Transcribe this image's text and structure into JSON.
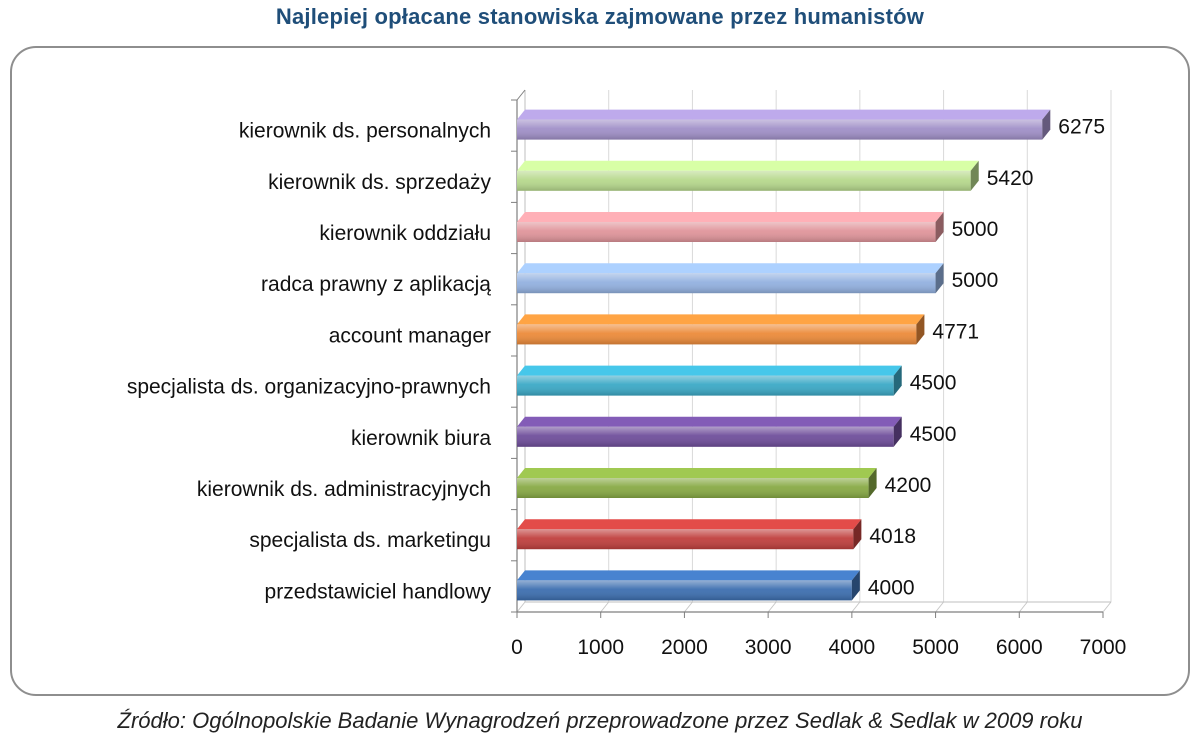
{
  "title": "Najlepiej opłacane stanowiska zajmowane przez humanistów",
  "source": "Źródło: Ogólnopolskie Badanie Wynagrodzeń przeprowadzone przez Sedlak & Sedlak w 2009 roku",
  "chart_data": {
    "type": "bar",
    "orientation": "horizontal",
    "title": "Najlepiej opłacane stanowiska zajmowane przez humanistów",
    "xlabel": "",
    "ylabel": "",
    "xlim": [
      0,
      7000
    ],
    "xticks": [
      0,
      1000,
      2000,
      3000,
      4000,
      5000,
      6000,
      7000
    ],
    "grid": true,
    "categories": [
      "kierownik ds. personalnych",
      "kierownik ds. sprzedaży",
      "kierownik oddziału",
      "radca prawny z aplikacją",
      "account manager",
      "specjalista ds. organizacyjno-prawnych",
      "kierownik biura",
      "kierownik ds. administracyjnych",
      "specjalista ds. marketingu",
      "przedstawiciel handlowy"
    ],
    "values": [
      6275,
      5420,
      5000,
      5000,
      4771,
      4500,
      4500,
      4200,
      4018,
      4000
    ],
    "colors": [
      "#a190c8",
      "#b7d98d",
      "#e0959b",
      "#93b1e0",
      "#ec8b3a",
      "#3ba9c6",
      "#6f4e9b",
      "#88aa45",
      "#c0403e",
      "#3d6fb0"
    ]
  }
}
